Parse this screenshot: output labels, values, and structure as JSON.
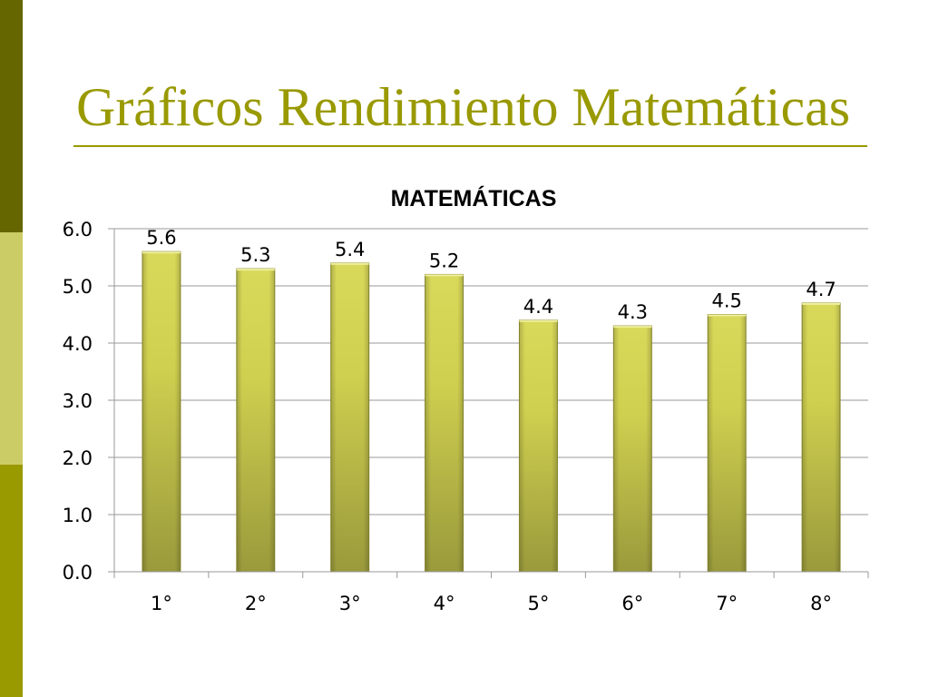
{
  "slide": {
    "title": "Gráficos Rendimiento Matemáticas"
  },
  "colors": {
    "accent": "#999900",
    "strip_top": "#666600",
    "strip_mid": "#cccc66",
    "strip_bottom": "#999900",
    "bar_light": "#d8d85a",
    "bar_dark": "#9a9a3c",
    "grid": "#999999"
  },
  "chart_data": {
    "type": "bar",
    "title": "MATEMÁTICAS",
    "categories": [
      "1°",
      "2°",
      "3°",
      "4°",
      "5°",
      "6°",
      "7°",
      "8°"
    ],
    "values": [
      5.6,
      5.3,
      5.4,
      5.2,
      4.4,
      4.3,
      4.5,
      4.7
    ],
    "value_labels": [
      "5.6",
      "5.3",
      "5.4",
      "5.2",
      "4.4",
      "4.3",
      "4.5",
      "4.7"
    ],
    "y_ticks": [
      "0.0",
      "1.0",
      "2.0",
      "3.0",
      "4.0",
      "5.0",
      "6.0"
    ],
    "ylim": [
      0,
      6
    ],
    "xlabel": "",
    "ylabel": "",
    "grid": true,
    "legend": false
  }
}
